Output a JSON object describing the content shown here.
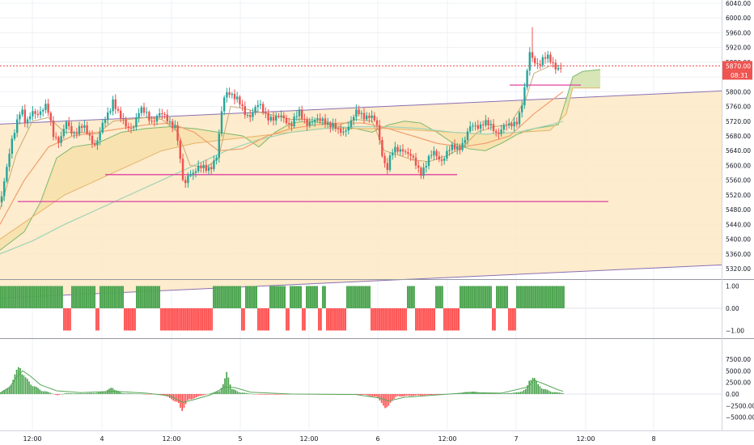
{
  "chart_data": {
    "type": "candlestick",
    "colors": {
      "up": "#26a69a",
      "down": "#ef5350",
      "bar_up": "#43a047",
      "bar_down": "#ff4d4d",
      "channel_fill": "#fde9c4",
      "ichimoku_fill": "#f7e1ad",
      "cloud_green": "#cfe6b8",
      "support": "#e040a0",
      "last_price": "#ef5350"
    },
    "price_axis": {
      "ticks": [
        "6040.00",
        "6000.00",
        "5960.00",
        "5920.00",
        "5880.00",
        "5840.00",
        "5800.00",
        "5760.00",
        "5720.00",
        "5680.00",
        "5640.00",
        "5600.00",
        "5560.00",
        "5520.00",
        "5480.00",
        "5440.00",
        "5400.00",
        "5360.00",
        "5320.00"
      ],
      "range": [
        5300,
        6045
      ],
      "last_price": "5870.00",
      "countdown": "08:31"
    },
    "oscillator_axis": {
      "ticks": [
        "1.00",
        "0.00",
        "−1.00"
      ],
      "range": [
        -1.1,
        1.1
      ]
    },
    "volume_axis": {
      "ticks": [
        "7500.00",
        "5000.00",
        "2500.00",
        "0.00",
        "−2500.00",
        "−5000.00"
      ],
      "range": [
        -5300,
        7800
      ]
    },
    "time_axis": {
      "labels": [
        "12:00",
        "4",
        "12:00",
        "5",
        "12:00",
        "6",
        "12:00",
        "7",
        "12:00",
        "8"
      ]
    },
    "price_path": [
      [
        0,
        5500
      ],
      [
        8,
        5580
      ],
      [
        14,
        5660
      ],
      [
        20,
        5720
      ],
      [
        26,
        5760
      ],
      [
        32,
        5700
      ],
      [
        40,
        5750
      ],
      [
        50,
        5745
      ],
      [
        58,
        5755
      ],
      [
        66,
        5690
      ],
      [
        74,
        5665
      ],
      [
        82,
        5710
      ],
      [
        90,
        5690
      ],
      [
        100,
        5705
      ],
      [
        110,
        5680
      ],
      [
        118,
        5660
      ],
      [
        126,
        5700
      ],
      [
        134,
        5740
      ],
      [
        140,
        5785
      ],
      [
        148,
        5730
      ],
      [
        156,
        5700
      ],
      [
        164,
        5710
      ],
      [
        172,
        5745
      ],
      [
        180,
        5740
      ],
      [
        188,
        5725
      ],
      [
        196,
        5735
      ],
      [
        204,
        5730
      ],
      [
        212,
        5720
      ],
      [
        218,
        5700
      ],
      [
        224,
        5580
      ],
      [
        228,
        5535
      ],
      [
        232,
        5580
      ],
      [
        240,
        5585
      ],
      [
        250,
        5590
      ],
      [
        260,
        5600
      ],
      [
        268,
        5620
      ],
      [
        272,
        5700
      ],
      [
        276,
        5780
      ],
      [
        282,
        5810
      ],
      [
        288,
        5790
      ],
      [
        294,
        5770
      ],
      [
        302,
        5745
      ],
      [
        310,
        5740
      ],
      [
        320,
        5760
      ],
      [
        330,
        5740
      ],
      [
        340,
        5720
      ],
      [
        350,
        5735
      ],
      [
        360,
        5710
      ],
      [
        370,
        5740
      ],
      [
        380,
        5720
      ],
      [
        390,
        5715
      ],
      [
        400,
        5730
      ],
      [
        410,
        5705
      ],
      [
        418,
        5690
      ],
      [
        426,
        5700
      ],
      [
        434,
        5715
      ],
      [
        442,
        5745
      ],
      [
        450,
        5740
      ],
      [
        458,
        5730
      ],
      [
        466,
        5705
      ],
      [
        472,
        5640
      ],
      [
        478,
        5590
      ],
      [
        484,
        5630
      ],
      [
        490,
        5640
      ],
      [
        498,
        5650
      ],
      [
        506,
        5625
      ],
      [
        514,
        5600
      ],
      [
        520,
        5585
      ],
      [
        528,
        5610
      ],
      [
        536,
        5630
      ],
      [
        546,
        5620
      ],
      [
        556,
        5640
      ],
      [
        566,
        5650
      ],
      [
        574,
        5670
      ],
      [
        582,
        5700
      ],
      [
        590,
        5710
      ],
      [
        598,
        5720
      ],
      [
        606,
        5700
      ],
      [
        614,
        5690
      ],
      [
        622,
        5710
      ],
      [
        630,
        5700
      ],
      [
        638,
        5720
      ],
      [
        644,
        5760
      ],
      [
        650,
        5820
      ],
      [
        654,
        5900
      ],
      [
        660,
        5885
      ],
      [
        666,
        5880
      ],
      [
        672,
        5890
      ],
      [
        678,
        5885
      ],
      [
        684,
        5875
      ],
      [
        690,
        5870
      ],
      [
        696,
        5868
      ]
    ],
    "tenkan_path": [
      [
        0,
        5480
      ],
      [
        20,
        5630
      ],
      [
        40,
        5720
      ],
      [
        60,
        5730
      ],
      [
        80,
        5690
      ],
      [
        100,
        5690
      ],
      [
        120,
        5685
      ],
      [
        140,
        5720
      ],
      [
        160,
        5725
      ],
      [
        180,
        5730
      ],
      [
        200,
        5725
      ],
      [
        220,
        5690
      ],
      [
        235,
        5600
      ],
      [
        255,
        5595
      ],
      [
        270,
        5620
      ],
      [
        285,
        5760
      ],
      [
        300,
        5755
      ],
      [
        320,
        5745
      ],
      [
        340,
        5735
      ],
      [
        360,
        5725
      ],
      [
        380,
        5725
      ],
      [
        400,
        5720
      ],
      [
        420,
        5710
      ],
      [
        440,
        5725
      ],
      [
        460,
        5720
      ],
      [
        475,
        5640
      ],
      [
        490,
        5630
      ],
      [
        510,
        5615
      ],
      [
        530,
        5610
      ],
      [
        550,
        5625
      ],
      [
        570,
        5645
      ],
      [
        590,
        5690
      ],
      [
        610,
        5705
      ],
      [
        630,
        5710
      ],
      [
        650,
        5780
      ],
      [
        660,
        5850
      ],
      [
        680,
        5870
      ],
      [
        696,
        5870
      ]
    ],
    "kijun_path": [
      [
        0,
        5440
      ],
      [
        30,
        5560
      ],
      [
        60,
        5650
      ],
      [
        90,
        5680
      ],
      [
        120,
        5690
      ],
      [
        150,
        5700
      ],
      [
        180,
        5710
      ],
      [
        210,
        5715
      ],
      [
        240,
        5690
      ],
      [
        270,
        5640
      ],
      [
        300,
        5645
      ],
      [
        330,
        5680
      ],
      [
        360,
        5700
      ],
      [
        390,
        5710
      ],
      [
        420,
        5715
      ],
      [
        450,
        5715
      ],
      [
        480,
        5700
      ],
      [
        510,
        5680
      ],
      [
        540,
        5660
      ],
      [
        570,
        5650
      ],
      [
        600,
        5660
      ],
      [
        630,
        5680
      ],
      [
        660,
        5740
      ],
      [
        690,
        5790
      ],
      [
        696,
        5800
      ]
    ],
    "ma_path": [
      [
        0,
        5360
      ],
      [
        40,
        5395
      ],
      [
        80,
        5440
      ],
      [
        120,
        5480
      ],
      [
        160,
        5520
      ],
      [
        200,
        5560
      ],
      [
        240,
        5600
      ],
      [
        280,
        5640
      ],
      [
        320,
        5670
      ],
      [
        360,
        5690
      ],
      [
        400,
        5700
      ],
      [
        440,
        5705
      ],
      [
        480,
        5705
      ],
      [
        520,
        5700
      ],
      [
        560,
        5690
      ],
      [
        600,
        5685
      ],
      [
        640,
        5690
      ],
      [
        680,
        5710
      ],
      [
        696,
        5720
      ]
    ],
    "span_a_path": [
      [
        0,
        5370
      ],
      [
        30,
        5420
      ],
      [
        50,
        5500
      ],
      [
        70,
        5620
      ],
      [
        90,
        5650
      ],
      [
        120,
        5660
      ],
      [
        150,
        5690
      ],
      [
        180,
        5700
      ],
      [
        210,
        5705
      ],
      [
        240,
        5700
      ],
      [
        270,
        5690
      ],
      [
        300,
        5680
      ],
      [
        320,
        5650
      ],
      [
        340,
        5690
      ],
      [
        360,
        5715
      ],
      [
        380,
        5720
      ],
      [
        400,
        5715
      ],
      [
        420,
        5705
      ],
      [
        440,
        5700
      ],
      [
        460,
        5690
      ],
      [
        480,
        5710
      ],
      [
        500,
        5720
      ],
      [
        520,
        5715
      ],
      [
        540,
        5690
      ],
      [
        560,
        5660
      ],
      [
        580,
        5645
      ],
      [
        600,
        5640
      ],
      [
        620,
        5660
      ],
      [
        640,
        5685
      ],
      [
        660,
        5700
      ],
      [
        690,
        5710
      ],
      [
        700,
        5780
      ],
      [
        708,
        5840
      ],
      [
        720,
        5855
      ],
      [
        742,
        5860
      ]
    ],
    "span_b_path": [
      [
        0,
        5400
      ],
      [
        40,
        5460
      ],
      [
        80,
        5520
      ],
      [
        120,
        5560
      ],
      [
        160,
        5600
      ],
      [
        200,
        5640
      ],
      [
        240,
        5660
      ],
      [
        280,
        5670
      ],
      [
        320,
        5680
      ],
      [
        360,
        5690
      ],
      [
        400,
        5700
      ],
      [
        440,
        5700
      ],
      [
        480,
        5700
      ],
      [
        520,
        5695
      ],
      [
        560,
        5690
      ],
      [
        600,
        5685
      ],
      [
        640,
        5690
      ],
      [
        680,
        5695
      ],
      [
        700,
        5740
      ],
      [
        708,
        5810
      ],
      [
        742,
        5810
      ]
    ],
    "channel": {
      "upper": [
        [
          0,
          5712
        ],
        [
          892,
          5802
        ]
      ],
      "lower": [
        [
          0,
          5240
        ],
        [
          892,
          5330
        ]
      ]
    },
    "support_lines": [
      {
        "x": [
          130,
          565
        ],
        "price": 5575
      },
      {
        "x": [
          22,
          752
        ],
        "price": 5502
      },
      {
        "x": [
          630,
          718
        ],
        "price": 5818
      }
    ],
    "oscillator_segments": [
      [
        0,
        78,
        1
      ],
      [
        78,
        88,
        -1
      ],
      [
        88,
        118,
        1
      ],
      [
        118,
        123,
        -1
      ],
      [
        123,
        153,
        1
      ],
      [
        153,
        168,
        -1
      ],
      [
        168,
        198,
        1
      ],
      [
        198,
        213,
        -1
      ],
      [
        213,
        263,
        -1
      ],
      [
        263,
        298,
        1
      ],
      [
        298,
        303,
        -1
      ],
      [
        303,
        318,
        1
      ],
      [
        318,
        333,
        -1
      ],
      [
        333,
        353,
        1
      ],
      [
        353,
        358,
        -1
      ],
      [
        358,
        373,
        1
      ],
      [
        373,
        378,
        -1
      ],
      [
        378,
        393,
        1
      ],
      [
        393,
        398,
        -1
      ],
      [
        398,
        403,
        1
      ],
      [
        403,
        428,
        -1
      ],
      [
        428,
        458,
        1
      ],
      [
        458,
        503,
        -1
      ],
      [
        503,
        513,
        1
      ],
      [
        513,
        538,
        -1
      ],
      [
        538,
        548,
        1
      ],
      [
        548,
        568,
        -1
      ],
      [
        568,
        608,
        1
      ],
      [
        608,
        613,
        -1
      ],
      [
        613,
        628,
        1
      ],
      [
        628,
        638,
        -1
      ],
      [
        638,
        698,
        1
      ]
    ],
    "volume_peaks": [
      [
        0,
        400
      ],
      [
        10,
        1500
      ],
      [
        18,
        4500
      ],
      [
        24,
        7000
      ],
      [
        30,
        3800
      ],
      [
        36,
        2800
      ],
      [
        42,
        1800
      ],
      [
        50,
        900
      ],
      [
        60,
        400
      ],
      [
        70,
        -300
      ],
      [
        80,
        200
      ],
      [
        100,
        150
      ],
      [
        120,
        300
      ],
      [
        130,
        800
      ],
      [
        138,
        1500
      ],
      [
        150,
        200
      ],
      [
        170,
        100
      ],
      [
        200,
        -200
      ],
      [
        212,
        -1200
      ],
      [
        220,
        -2500
      ],
      [
        224,
        -3800
      ],
      [
        232,
        -1500
      ],
      [
        240,
        -900
      ],
      [
        250,
        -300
      ],
      [
        270,
        700
      ],
      [
        276,
        2500
      ],
      [
        280,
        5500
      ],
      [
        286,
        1200
      ],
      [
        296,
        400
      ],
      [
        320,
        -150
      ],
      [
        350,
        -100
      ],
      [
        380,
        -100
      ],
      [
        420,
        -150
      ],
      [
        450,
        -200
      ],
      [
        466,
        -800
      ],
      [
        472,
        -2200
      ],
      [
        476,
        -4300
      ],
      [
        482,
        -1800
      ],
      [
        490,
        -600
      ],
      [
        510,
        -400
      ],
      [
        540,
        -200
      ],
      [
        570,
        300
      ],
      [
        580,
        600
      ],
      [
        600,
        300
      ],
      [
        620,
        100
      ],
      [
        640,
        400
      ],
      [
        650,
        1200
      ],
      [
        654,
        3500
      ],
      [
        658,
        4500
      ],
      [
        664,
        2200
      ],
      [
        672,
        1200
      ],
      [
        680,
        600
      ],
      [
        696,
        200
      ]
    ],
    "volume_ma_path": [
      [
        0,
        200
      ],
      [
        12,
        1500
      ],
      [
        20,
        3500
      ],
      [
        28,
        5000
      ],
      [
        38,
        3800
      ],
      [
        50,
        2000
      ],
      [
        70,
        700
      ],
      [
        100,
        300
      ],
      [
        140,
        600
      ],
      [
        180,
        200
      ],
      [
        210,
        -400
      ],
      [
        226,
        -1800
      ],
      [
        240,
        -1200
      ],
      [
        260,
        -200
      ],
      [
        278,
        1500
      ],
      [
        290,
        1400
      ],
      [
        310,
        400
      ],
      [
        360,
        0
      ],
      [
        440,
        -100
      ],
      [
        470,
        -900
      ],
      [
        480,
        -1500
      ],
      [
        500,
        -700
      ],
      [
        540,
        -200
      ],
      [
        580,
        300
      ],
      [
        620,
        200
      ],
      [
        652,
        1500
      ],
      [
        660,
        3000
      ],
      [
        672,
        2200
      ],
      [
        690,
        900
      ],
      [
        696,
        600
      ]
    ]
  }
}
